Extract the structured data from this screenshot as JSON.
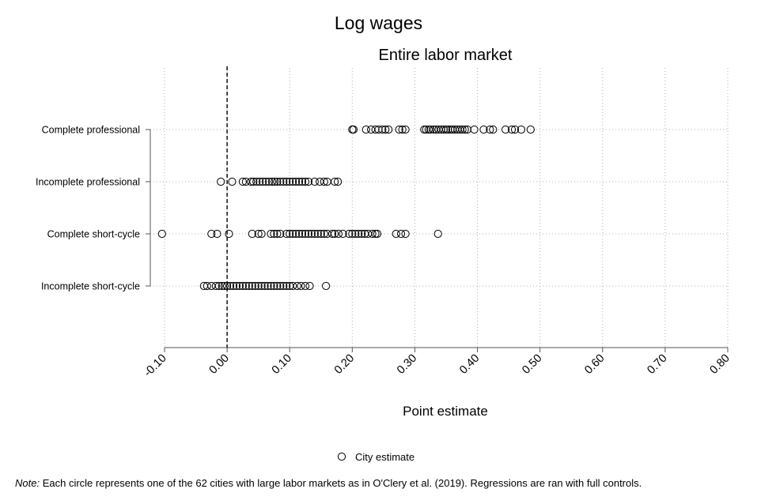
{
  "page": {
    "title": "Log wages",
    "note_prefix": "Note:",
    "note_text": "Each circle represents one of the 62 cities with large labor markets as in O'Clery et al. (2019). Regressions are ran with full controls."
  },
  "chart_data": {
    "type": "scatter",
    "title": "Entire labor market",
    "xlabel": "Point estimate",
    "ylabel": "",
    "xlim": [
      -0.1,
      0.8
    ],
    "xticks": [
      "-0.10",
      "0.00",
      "0.10",
      "0.20",
      "0.30",
      "0.40",
      "0.50",
      "0.60",
      "0.70",
      "0.80"
    ],
    "xtick_values": [
      -0.1,
      0.0,
      0.1,
      0.2,
      0.3,
      0.4,
      0.5,
      0.6,
      0.7,
      0.8
    ],
    "reference_line_x": 0.0,
    "grid": true,
    "legend_position": "bottom-center",
    "legend_label": "City estimate",
    "marker": "hollow-circle",
    "marker_color": "#000000",
    "categories": [
      "Complete professional",
      "Incomplete professional",
      "Complete short-cycle",
      "Incomplete short-cycle"
    ],
    "series": [
      {
        "category": "Complete professional",
        "values": [
          0.2,
          0.202,
          0.222,
          0.23,
          0.237,
          0.242,
          0.248,
          0.253,
          0.258,
          0.275,
          0.28,
          0.285,
          0.315,
          0.318,
          0.322,
          0.325,
          0.33,
          0.334,
          0.338,
          0.342,
          0.346,
          0.35,
          0.353,
          0.357,
          0.36,
          0.364,
          0.368,
          0.372,
          0.376,
          0.38,
          0.384,
          0.395,
          0.41,
          0.42,
          0.425,
          0.445,
          0.455,
          0.46,
          0.47,
          0.485
        ]
      },
      {
        "category": "Incomplete professional",
        "values": [
          -0.01,
          0.008,
          0.025,
          0.03,
          0.038,
          0.042,
          0.047,
          0.052,
          0.057,
          0.062,
          0.067,
          0.072,
          0.076,
          0.08,
          0.085,
          0.09,
          0.095,
          0.1,
          0.105,
          0.11,
          0.115,
          0.12,
          0.125,
          0.13,
          0.14,
          0.148,
          0.155,
          0.16,
          0.172,
          0.177
        ]
      },
      {
        "category": "Complete short-cycle",
        "values": [
          -0.104,
          -0.025,
          -0.016,
          0.003,
          0.04,
          0.05,
          0.055,
          0.07,
          0.075,
          0.08,
          0.085,
          0.095,
          0.1,
          0.105,
          0.11,
          0.115,
          0.12,
          0.125,
          0.13,
          0.135,
          0.14,
          0.145,
          0.15,
          0.155,
          0.16,
          0.168,
          0.172,
          0.178,
          0.185,
          0.195,
          0.2,
          0.205,
          0.21,
          0.215,
          0.22,
          0.225,
          0.232,
          0.237,
          0.24,
          0.27,
          0.278,
          0.285,
          0.337
        ]
      },
      {
        "category": "Incomplete short-cycle",
        "values": [
          -0.037,
          -0.032,
          -0.025,
          -0.018,
          -0.013,
          -0.008,
          -0.004,
          0.0,
          0.005,
          0.01,
          0.015,
          0.02,
          0.025,
          0.03,
          0.035,
          0.04,
          0.045,
          0.05,
          0.055,
          0.06,
          0.065,
          0.07,
          0.075,
          0.08,
          0.085,
          0.09,
          0.095,
          0.1,
          0.105,
          0.112,
          0.118,
          0.125,
          0.132,
          0.158
        ]
      }
    ]
  }
}
